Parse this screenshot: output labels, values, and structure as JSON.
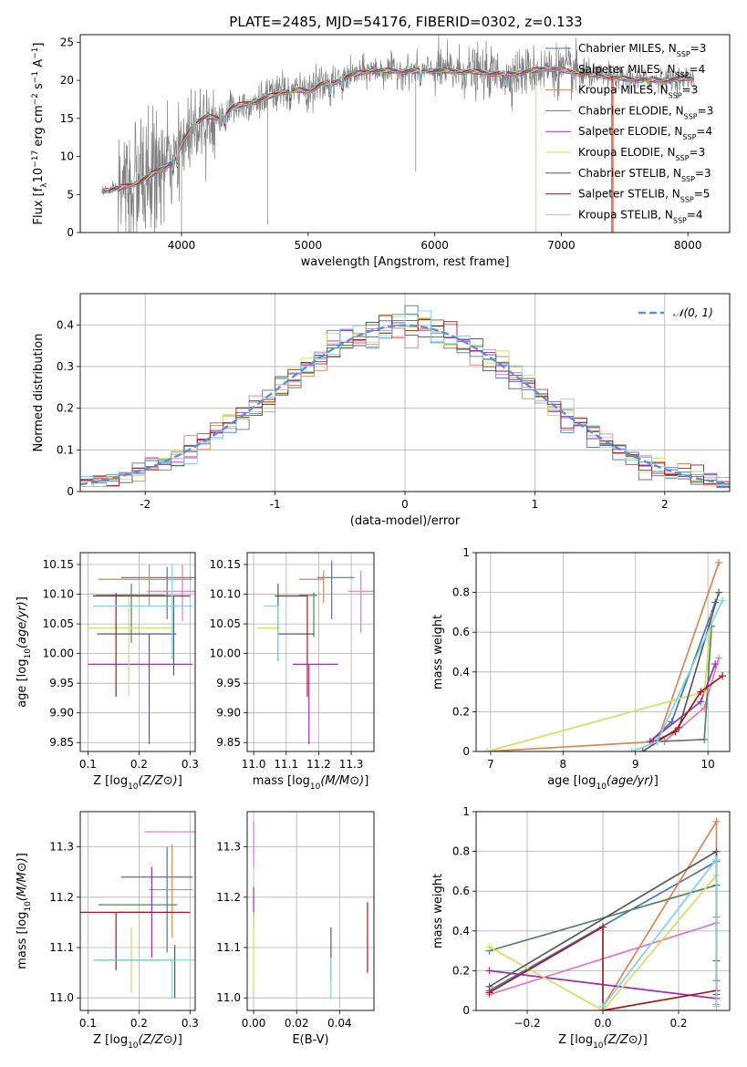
{
  "figure": {
    "title": "PLATE=2485, MJD=54176, FIBERID=0302, z=0.133"
  },
  "colors": {
    "data": "#808080",
    "models": [
      "#4c72b0",
      "#e377c2",
      "#dd8452",
      "#55845f",
      "#9b30b5",
      "#d0e060",
      "#5a5a5a",
      "#a51c1c",
      "#7fd4e0"
    ],
    "gaussian": "#5b8fd8",
    "grid": "#b0b0b0"
  },
  "chart_data": [
    {
      "id": "spectrum",
      "type": "line",
      "xlabel": "wavelength [Angstrom, rest frame]",
      "ylabel": "Flux [f_λ10^-17 erg cm^-2 s^-1 A^-1]",
      "xlim": [
        3200,
        8330
      ],
      "ylim": [
        0,
        26
      ],
      "xticks": [
        4000,
        5000,
        6000,
        7000,
        8000
      ],
      "yticks": [
        0,
        5,
        10,
        15,
        20,
        25
      ],
      "grid": false,
      "legend_position": "top-right",
      "legend": [
        {
          "label": "Chabrier MILES, N",
          "sub": "SSP",
          "val": "=3"
        },
        {
          "label": "Salpeter MILES, N",
          "sub": "SSP",
          "val": "=4"
        },
        {
          "label": "Kroupa MILES, N",
          "sub": "SSP",
          "val": "=3"
        },
        {
          "label": "Chabrier ELODIE, N",
          "sub": "SSP",
          "val": "=3"
        },
        {
          "label": "Salpeter ELODIE, N",
          "sub": "SSP",
          "val": "=4"
        },
        {
          "label": "Kroupa ELODIE, N",
          "sub": "SSP",
          "val": "=3"
        },
        {
          "label": "Chabrier STELIB, N",
          "sub": "SSP",
          "val": "=3"
        },
        {
          "label": "Salpeter STELIB, N",
          "sub": "SSP",
          "val": "=5"
        },
        {
          "label": "Kroupa STELIB, N",
          "sub": "SSP",
          "val": "=4"
        }
      ],
      "continuum_x": [
        3370,
        3500,
        3650,
        3800,
        3950,
        4000,
        4100,
        4200,
        4300,
        4400,
        4600,
        4800,
        4900,
        5000,
        5100,
        5200,
        5300,
        5500,
        5800,
        6000,
        6300,
        6600,
        6900,
        7200,
        7500,
        7800,
        8050
      ],
      "continuum_y": [
        5.5,
        5.8,
        6.5,
        8.0,
        9.5,
        11.5,
        14.5,
        15.2,
        15.0,
        16.5,
        17.3,
        18.5,
        18.7,
        18.6,
        19.5,
        19.6,
        20.5,
        21.3,
        21.2,
        21.3,
        21.1,
        20.8,
        21.6,
        20.8,
        20.2,
        20.0,
        20.3
      ]
    },
    {
      "id": "residuals",
      "type": "histogram",
      "xlabel": "(data-model)/error",
      "ylabel": "Normed distribution",
      "xlim": [
        -2.5,
        2.5
      ],
      "ylim": [
        0,
        0.475
      ],
      "xticks": [
        -2,
        -1,
        0,
        1,
        2
      ],
      "yticks": [
        0.0,
        0.1,
        0.2,
        0.3,
        0.4
      ],
      "grid": true,
      "legend_position": "top-right",
      "legend": [
        "𝒩(0, 1)"
      ],
      "bin_width": 0.1
    },
    {
      "id": "age-vs-Z",
      "type": "errorbar",
      "xlabel": "Z [log10(Z/Z⊙)]",
      "ylabel": "age  [log10(age/yr)]",
      "xlim": [
        0.085,
        0.31
      ],
      "ylim": [
        9.835,
        10.17
      ],
      "xticks": [
        0.1,
        0.2,
        0.3
      ],
      "xticklabels": [
        "0.1",
        "0.2",
        "0.3"
      ],
      "yticks": [
        9.85,
        9.9,
        9.95,
        10.0,
        10.05,
        10.1,
        10.15
      ],
      "yticklabels": [
        "9.85",
        "9.90",
        "9.95",
        "10.00",
        "10.05",
        "10.10",
        "10.15"
      ],
      "grid": true,
      "points": [
        {
          "x": 0.255,
          "xerr": [
            0.09,
            0.055
          ],
          "y": 10.128,
          "yerr": [
            0.07,
            0.018
          ],
          "c": 0
        },
        {
          "x": 0.285,
          "xerr": [
            0.07,
            0.025
          ],
          "y": 10.105,
          "yerr": [
            0.05,
            0.045
          ],
          "c": 1
        },
        {
          "x": 0.22,
          "xerr": [
            0.1,
            0.085
          ],
          "y": 10.125,
          "yerr": [
            0.045,
            0.025
          ],
          "c": 2
        },
        {
          "x": 0.185,
          "xerr": [
            0.07,
            0.065
          ],
          "y": 10.098,
          "yerr": [
            0.08,
            0.02
          ],
          "c": 3
        },
        {
          "x": 0.22,
          "xerr": [
            0.12,
            0.085
          ],
          "y": 9.982,
          "yerr": [
            0.135,
            0.05
          ],
          "c": 4
        },
        {
          "x": 0.18,
          "xerr": [
            0.08,
            0.09
          ],
          "y": 10.043,
          "yerr": [
            0.115,
            0.055
          ],
          "c": 5
        },
        {
          "x": 0.268,
          "xerr": [
            0.15,
            0.005
          ],
          "y": 10.033,
          "yerr": [
            0.07,
            0.065
          ],
          "c": 6
        },
        {
          "x": 0.155,
          "xerr": [
            0.045,
            0.145
          ],
          "y": 10.097,
          "yerr": [
            0.17,
            0.005
          ],
          "c": 7
        },
        {
          "x": 0.265,
          "xerr": [
            0.155,
            0.04
          ],
          "y": 10.08,
          "yerr": [
            0.09,
            0.07
          ],
          "c": 8
        }
      ]
    },
    {
      "id": "age-vs-mass",
      "type": "errorbar",
      "xlabel": "mass [log10(M/M⊙)]",
      "xlim": [
        10.98,
        11.37
      ],
      "ylim": [
        9.835,
        10.17
      ],
      "xticks": [
        11.0,
        11.1,
        11.2,
        11.3
      ],
      "xticklabels": [
        "11.0",
        "11.1",
        "11.2",
        "11.3"
      ],
      "yticks": [
        9.85,
        9.9,
        9.95,
        10.0,
        10.05,
        10.1,
        10.15
      ],
      "yticklabels": [
        "9.85",
        "9.90",
        "9.95",
        "10.00",
        "10.05",
        "10.10",
        "10.15"
      ],
      "grid": true,
      "points": [
        {
          "x": 11.24,
          "xerr": [
            0.045,
            0.07
          ],
          "y": 10.128,
          "yerr": [
            0.07,
            0.028
          ],
          "c": 0
        },
        {
          "x": 11.33,
          "xerr": [
            0.04,
            0.04
          ],
          "y": 10.105,
          "yerr": [
            0.07,
            0.035
          ],
          "c": 1
        },
        {
          "x": 11.215,
          "xerr": [
            0.075,
            0.0
          ],
          "y": 10.125,
          "yerr": [
            0.04,
            0.015
          ],
          "c": 2
        },
        {
          "x": 11.185,
          "xerr": [
            0.045,
            0.01
          ],
          "y": 10.098,
          "yerr": [
            0.07,
            0.005
          ],
          "c": 3
        },
        {
          "x": 11.17,
          "xerr": [
            0.05,
            0.09
          ],
          "y": 9.982,
          "yerr": [
            0.135,
            0.0
          ],
          "c": 4
        },
        {
          "x": 11.01,
          "xerr": [
            0.0,
            0.07
          ],
          "y": 10.043,
          "yerr": [
            0.0,
            0.0
          ],
          "c": 5
        },
        {
          "x": 11.075,
          "xerr": [
            0.0,
            0.11
          ],
          "y": 10.033,
          "yerr": [
            0.045,
            0.085
          ],
          "c": 6
        },
        {
          "x": 11.165,
          "xerr": [
            0.1,
            0.0
          ],
          "y": 10.097,
          "yerr": [
            0.17,
            0.0
          ],
          "c": 7
        },
        {
          "x": 11.075,
          "xerr": [
            0.045,
            0.0
          ],
          "y": 10.08,
          "yerr": [
            0.09,
            0.0
          ],
          "c": 8
        }
      ]
    },
    {
      "id": "weight-vs-age",
      "type": "line",
      "xlabel": "age  [log10(age/yr)]",
      "ylabel": "mass weight",
      "xlim": [
        6.8,
        10.3
      ],
      "ylim": [
        0,
        1
      ],
      "xticks": [
        7,
        8,
        9,
        10
      ],
      "yticks": [
        0.0,
        0.2,
        0.4,
        0.6,
        0.8,
        1.0
      ],
      "grid": true,
      "series": [
        {
          "c": 2,
          "x": [
            6.95,
            9.3,
            10.15
          ],
          "y": [
            0.0,
            0.05,
            0.95
          ]
        },
        {
          "c": 1,
          "x": [
            9.4,
            9.95,
            10.15
          ],
          "y": [
            0.05,
            0.22,
            0.47
          ]
        },
        {
          "c": 0,
          "x": [
            9.2,
            9.5,
            10.1
          ],
          "y": [
            0.05,
            0.15,
            0.75
          ]
        },
        {
          "c": 3,
          "x": [
            9.3,
            9.95,
            10.05
          ],
          "y": [
            0.05,
            0.06,
            0.63
          ]
        },
        {
          "c": 4,
          "x": [
            9.2,
            9.9,
            10.1
          ],
          "y": [
            0.05,
            0.25,
            0.44
          ]
        },
        {
          "c": 5,
          "x": [
            6.95,
            9.95,
            10.05
          ],
          "y": [
            0.0,
            0.3,
            0.68
          ]
        },
        {
          "c": 6,
          "x": [
            9.1,
            9.6,
            10.15
          ],
          "y": [
            0.0,
            0.12,
            0.8
          ]
        },
        {
          "c": 7,
          "x": [
            9.25,
            9.55,
            9.9,
            10.2
          ],
          "y": [
            0.05,
            0.1,
            0.3,
            0.38
          ]
        },
        {
          "c": 8,
          "x": [
            8.95,
            9.3,
            10.2
          ],
          "y": [
            0.0,
            0.05,
            0.76
          ]
        }
      ]
    },
    {
      "id": "mass-vs-Z",
      "type": "errorbar",
      "xlabel": "Z [log10(Z/Z⊙)]",
      "ylabel": "mass [log10(M/M⊙)]",
      "xlim": [
        0.085,
        0.31
      ],
      "ylim": [
        10.975,
        11.37
      ],
      "xticks": [
        0.1,
        0.2,
        0.3
      ],
      "xticklabels": [
        "0.1",
        "0.2",
        "0.3"
      ],
      "yticks": [
        11.0,
        11.1,
        11.2,
        11.3
      ],
      "yticklabels": [
        "11.0",
        "11.1",
        "11.2",
        "11.3"
      ],
      "grid": true,
      "points": [
        {
          "x": 0.255,
          "xerr": [
            0.09,
            0.05
          ],
          "y": 11.24,
          "yerr": [
            0.15,
            0.06
          ],
          "c": 0
        },
        {
          "x": 0.275,
          "xerr": [
            0.065,
            0.04
          ],
          "y": 11.33,
          "yerr": [
            0.0,
            0.0
          ],
          "c": 1
        },
        {
          "x": 0.265,
          "xerr": [
            0.045,
            0.04
          ],
          "y": 11.215,
          "yerr": [
            0.095,
            0.09
          ],
          "c": 2
        },
        {
          "x": 0.185,
          "xerr": [
            0.065,
            0.09
          ],
          "y": 11.185,
          "yerr": [
            0.0,
            0.0
          ],
          "c": 3
        },
        {
          "x": 0.225,
          "xerr": [
            0.065,
            0.0
          ],
          "y": 11.17,
          "yerr": [
            0.09,
            0.09
          ],
          "c": 4
        },
        {
          "x": 0.185,
          "xerr": [
            0.0,
            0.0
          ],
          "y": 11.08,
          "yerr": [
            0.07,
            0.06
          ],
          "c": 5
        },
        {
          "x": 0.27,
          "xerr": [
            0.155,
            0.0
          ],
          "y": 11.075,
          "yerr": [
            0.075,
            0.03
          ],
          "c": 6
        },
        {
          "x": 0.155,
          "xerr": [
            0.11,
            0.145
          ],
          "y": 11.17,
          "yerr": [
            0.115,
            0.0
          ],
          "c": 7
        },
        {
          "x": 0.265,
          "xerr": [
            0.155,
            0.045
          ],
          "y": 11.075,
          "yerr": [
            0.075,
            0.0
          ],
          "c": 8
        }
      ]
    },
    {
      "id": "mass-vs-EBV",
      "type": "errorbar",
      "xlabel": "E(B-V)",
      "xlim": [
        -0.003,
        0.056
      ],
      "ylim": [
        10.975,
        11.37
      ],
      "xticks": [
        0.0,
        0.02,
        0.04
      ],
      "xticklabels": [
        "0.00",
        "0.02",
        "0.04"
      ],
      "yticks": [
        11.0,
        11.1,
        11.2,
        11.3
      ],
      "yticklabels": [
        "11.0",
        "11.1",
        "11.2",
        "11.3"
      ],
      "grid": true,
      "points": [
        {
          "x": 0.0,
          "y": 11.28,
          "yerr": [
            0.02,
            0.07
          ],
          "c": 1
        },
        {
          "x": 0.0,
          "y": 11.22,
          "yerr": [
            0.08,
            0.0
          ],
          "c": 4
        },
        {
          "x": 0.0,
          "y": 11.08,
          "yerr": [
            0.06,
            0.09
          ],
          "c": 5
        },
        {
          "x": 0.036,
          "y": 11.09,
          "yerr": [
            0.06,
            0.05
          ],
          "c": 6
        },
        {
          "x": 0.036,
          "y": 11.05,
          "yerr": [
            0.05,
            0.03
          ],
          "c": 8
        },
        {
          "x": 0.053,
          "y": 11.12,
          "yerr": [
            0.07,
            0.07
          ],
          "c": 7
        }
      ]
    },
    {
      "id": "weight-vs-Z",
      "type": "line",
      "xlabel": "Z [log10(Z/Z⊙)]",
      "ylabel": "mass weight",
      "xlim": [
        -0.335,
        0.335
      ],
      "ylim": [
        0,
        1
      ],
      "xticks": [
        -0.2,
        0.0,
        0.2
      ],
      "xticklabels": [
        "−0.2",
        "0.0",
        "0.2"
      ],
      "yticks": [
        0.0,
        0.2,
        0.4,
        0.6,
        0.8,
        1.0
      ],
      "grid": true,
      "series": [
        {
          "c": 0,
          "x": [
            -0.3,
            0.3,
            0.3
          ],
          "y": [
            0.1,
            0.75,
            0.15
          ]
        },
        {
          "c": 1,
          "x": [
            -0.3,
            0.3,
            0.3
          ],
          "y": [
            0.08,
            0.44,
            0.47
          ]
        },
        {
          "c": 2,
          "x": [
            0.0,
            0.3,
            0.3
          ],
          "y": [
            0.02,
            0.95,
            0.03
          ]
        },
        {
          "c": 3,
          "x": [
            -0.3,
            0.3,
            0.3
          ],
          "y": [
            0.3,
            0.63,
            0.06
          ]
        },
        {
          "c": 4,
          "x": [
            -0.3,
            0.3,
            0.3
          ],
          "y": [
            0.2,
            0.06,
            0.25
          ]
        },
        {
          "c": 5,
          "x": [
            -0.3,
            0.0,
            0.3
          ],
          "y": [
            0.32,
            0.0,
            0.68
          ]
        },
        {
          "c": 6,
          "x": [
            -0.3,
            0.3,
            0.3
          ],
          "y": [
            0.12,
            0.8,
            0.08
          ]
        },
        {
          "c": 7,
          "x": [
            -0.3,
            0.0,
            0.0,
            0.3
          ],
          "y": [
            0.09,
            0.42,
            0.0,
            0.1
          ]
        },
        {
          "c": 8,
          "x": [
            0.0,
            0.3,
            0.3
          ],
          "y": [
            0.02,
            0.76,
            0.02
          ]
        }
      ]
    }
  ]
}
